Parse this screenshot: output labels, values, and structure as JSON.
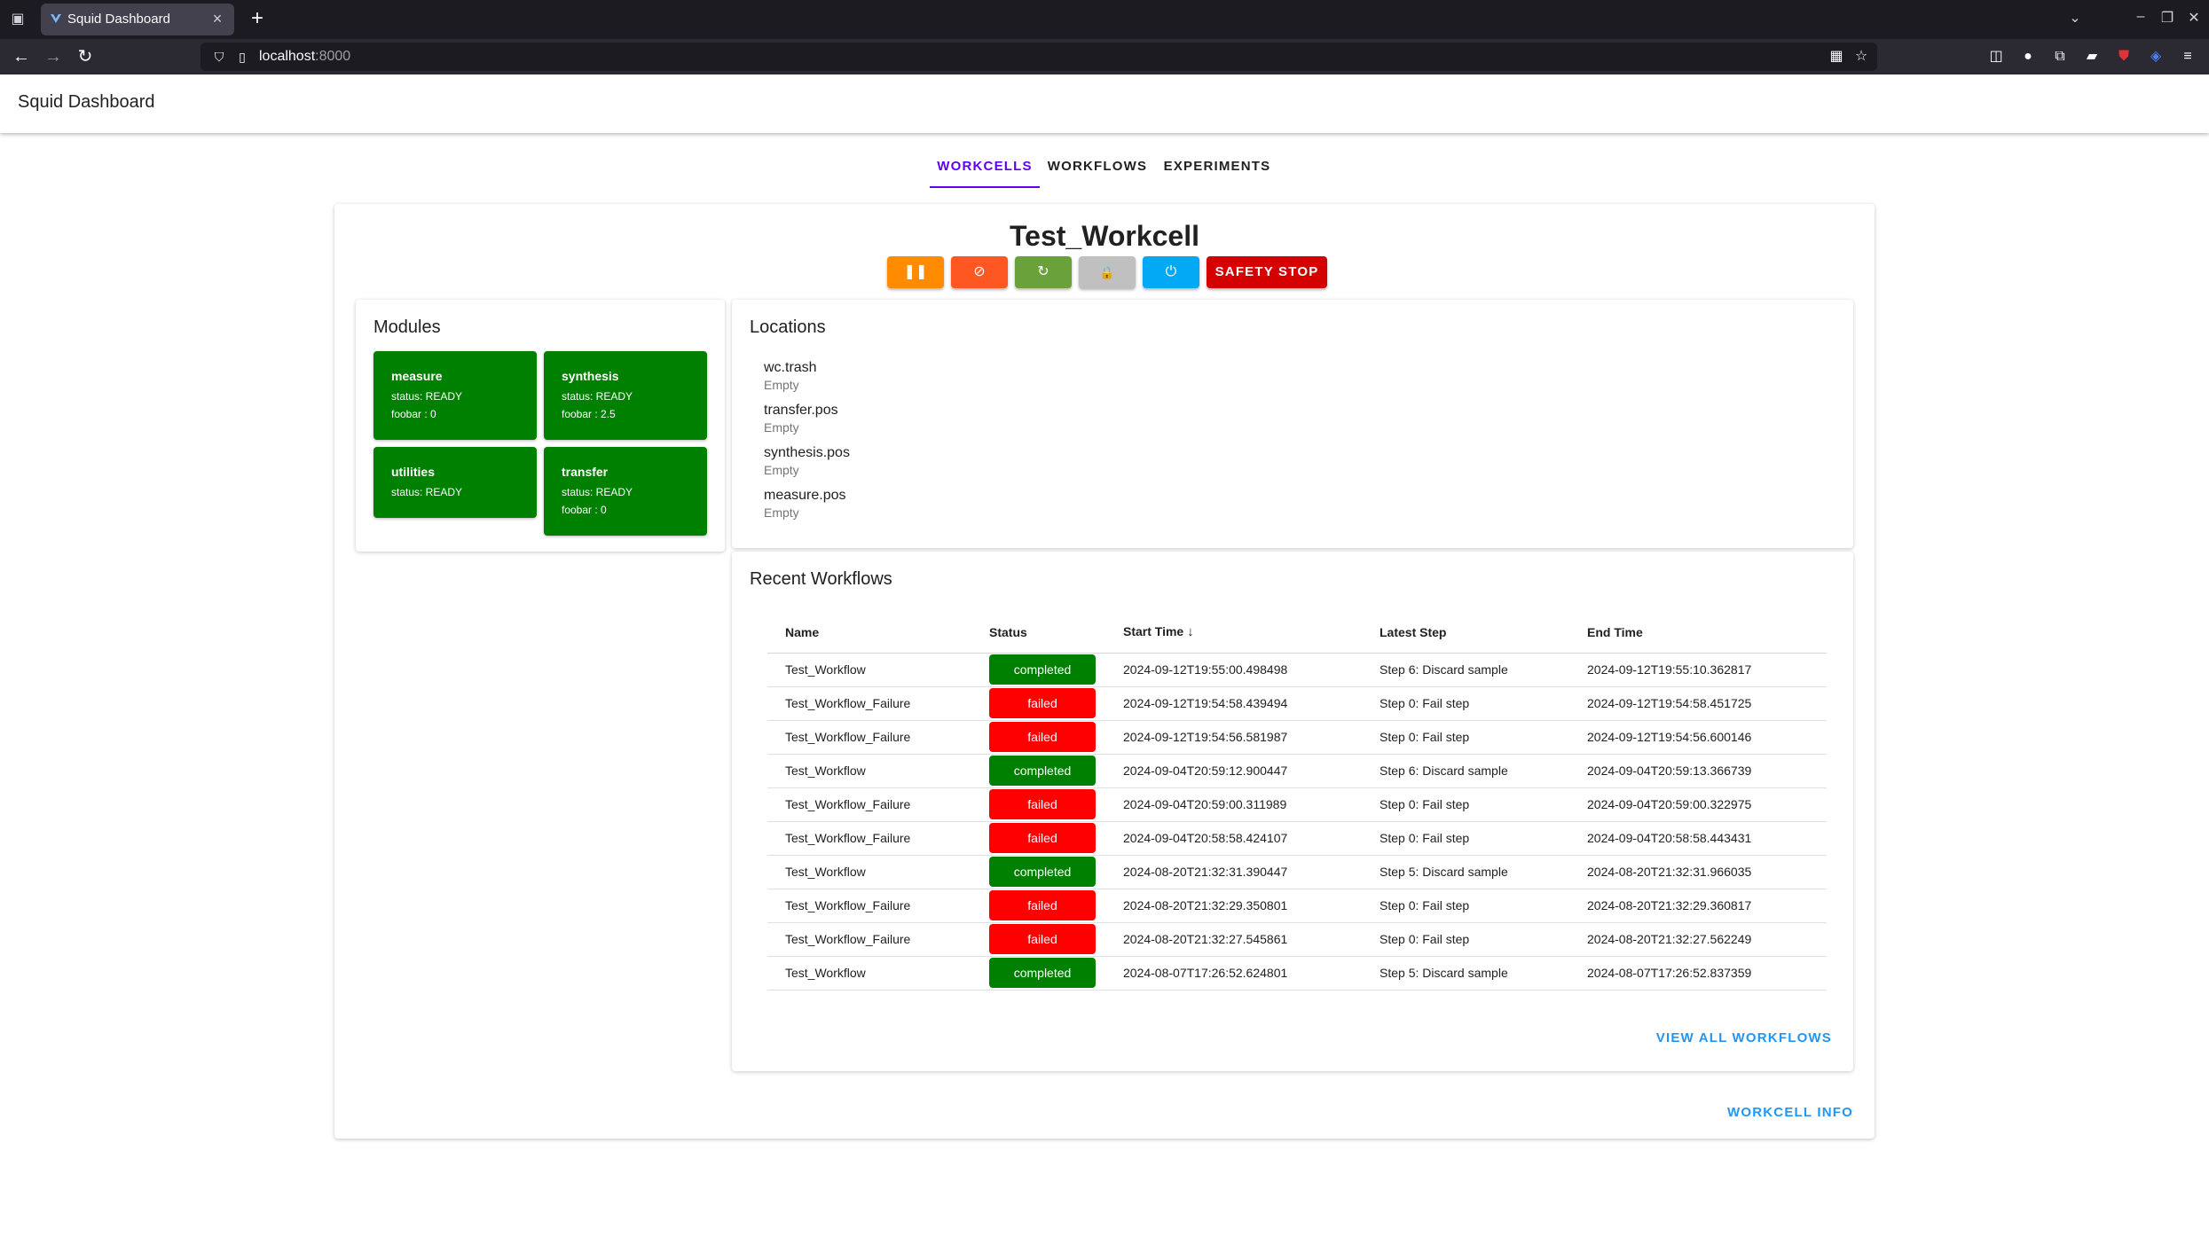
{
  "browser": {
    "tab_title": "Squid Dashboard",
    "url_host": "localhost",
    "url_port": ":8000"
  },
  "app": {
    "title": "Squid Dashboard",
    "tabs": [
      {
        "label": "WORKCELLS",
        "active": true
      },
      {
        "label": "WORKFLOWS",
        "active": false
      },
      {
        "label": "EXPERIMENTS",
        "active": false
      }
    ]
  },
  "workcell": {
    "name": "Test_Workcell",
    "controls": [
      {
        "name": "pause",
        "icon": "pause-icon",
        "glyph": "❚❚",
        "color": "#ff8c00"
      },
      {
        "name": "cancel",
        "icon": "cancel-icon",
        "glyph": "⊘",
        "color": "#ff5722"
      },
      {
        "name": "reset",
        "icon": "reset-icon",
        "glyph": "↻",
        "color": "#6ba13a"
      },
      {
        "name": "lock",
        "icon": "lock-icon",
        "glyph": "🔒",
        "color": "#c0c0c0"
      },
      {
        "name": "power",
        "icon": "power-icon",
        "glyph": "⏻",
        "color": "#03a9f4"
      }
    ],
    "safety_stop_label": "SAFETY STOP",
    "safety_stop_color": "#d50000"
  },
  "modules": {
    "title": "Modules",
    "items": [
      {
        "name": "measure",
        "lines": [
          "status: READY",
          "foobar : 0"
        ]
      },
      {
        "name": "synthesis",
        "lines": [
          "status: READY",
          "foobar : 2.5"
        ]
      },
      {
        "name": "utilities",
        "lines": [
          "status: READY"
        ]
      },
      {
        "name": "transfer",
        "lines": [
          "status: READY",
          "foobar : 0"
        ]
      }
    ]
  },
  "locations": {
    "title": "Locations",
    "items": [
      {
        "name": "wc.trash",
        "state": "Empty"
      },
      {
        "name": "transfer.pos",
        "state": "Empty"
      },
      {
        "name": "synthesis.pos",
        "state": "Empty"
      },
      {
        "name": "measure.pos",
        "state": "Empty"
      }
    ]
  },
  "recent_workflows": {
    "title": "Recent Workflows",
    "columns": [
      "Name",
      "Status",
      "Start Time",
      "Latest Step",
      "End Time"
    ],
    "sort_icon": "arrow-down-icon",
    "rows": [
      {
        "name": "Test_Workflow",
        "status": "completed",
        "start": "2024-09-12T19:55:00.498498",
        "step": "Step 6: Discard sample",
        "end": "2024-09-12T19:55:10.362817"
      },
      {
        "name": "Test_Workflow_Failure",
        "status": "failed",
        "start": "2024-09-12T19:54:58.439494",
        "step": "Step 0: Fail step",
        "end": "2024-09-12T19:54:58.451725"
      },
      {
        "name": "Test_Workflow_Failure",
        "status": "failed",
        "start": "2024-09-12T19:54:56.581987",
        "step": "Step 0: Fail step",
        "end": "2024-09-12T19:54:56.600146"
      },
      {
        "name": "Test_Workflow",
        "status": "completed",
        "start": "2024-09-04T20:59:12.900447",
        "step": "Step 6: Discard sample",
        "end": "2024-09-04T20:59:13.366739"
      },
      {
        "name": "Test_Workflow_Failure",
        "status": "failed",
        "start": "2024-09-04T20:59:00.311989",
        "step": "Step 0: Fail step",
        "end": "2024-09-04T20:59:00.322975"
      },
      {
        "name": "Test_Workflow_Failure",
        "status": "failed",
        "start": "2024-09-04T20:58:58.424107",
        "step": "Step 0: Fail step",
        "end": "2024-09-04T20:58:58.443431"
      },
      {
        "name": "Test_Workflow",
        "status": "completed",
        "start": "2024-08-20T21:32:31.390447",
        "step": "Step 5: Discard sample",
        "end": "2024-08-20T21:32:31.966035"
      },
      {
        "name": "Test_Workflow_Failure",
        "status": "failed",
        "start": "2024-08-20T21:32:29.350801",
        "step": "Step 0: Fail step",
        "end": "2024-08-20T21:32:29.360817"
      },
      {
        "name": "Test_Workflow_Failure",
        "status": "failed",
        "start": "2024-08-20T21:32:27.545861",
        "step": "Step 0: Fail step",
        "end": "2024-08-20T21:32:27.562249"
      },
      {
        "name": "Test_Workflow",
        "status": "completed",
        "start": "2024-08-07T17:26:52.624801",
        "step": "Step 5: Discard sample",
        "end": "2024-08-07T17:26:52.837359"
      }
    ],
    "status_colors": {
      "completed": "#008000",
      "failed": "#ff0000"
    },
    "view_all_label": "VIEW ALL WORKFLOWS"
  },
  "workcell_info_label": "WORKCELL INFO",
  "colors": {
    "module_green": "#008000",
    "accent": "#6200ee",
    "link": "#2196f3"
  }
}
